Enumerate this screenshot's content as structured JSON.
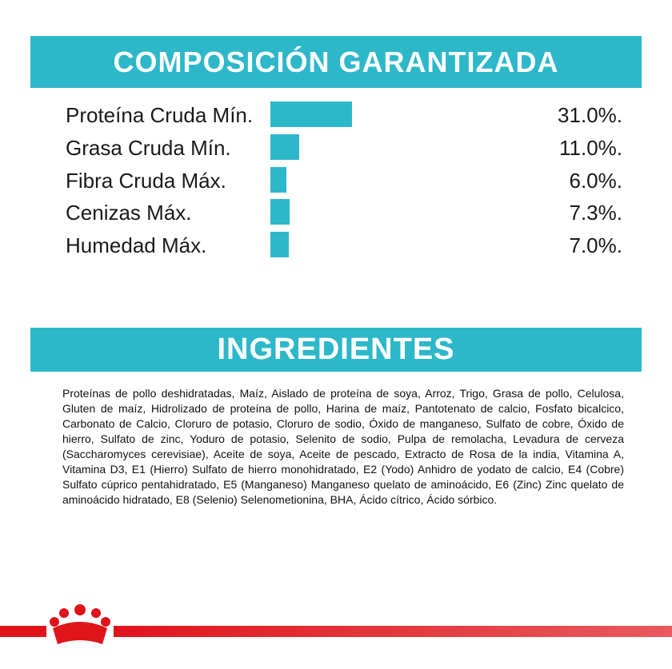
{
  "composition": {
    "title": "COMPOSICIÓN GARANTIZADA",
    "items": [
      {
        "label": "Proteína Cruda Mín.",
        "value": 31.0,
        "value_label": "31.0%."
      },
      {
        "label": "Grasa Cruda Mín.",
        "value": 11.0,
        "value_label": "11.0%."
      },
      {
        "label": "Fibra Cruda Máx.",
        "value": 6.0,
        "value_label": "6.0%."
      },
      {
        "label": "Cenizas Máx.",
        "value": 7.3,
        "value_label": "7.3%."
      },
      {
        "label": "Humedad Máx.",
        "value": 7.0,
        "value_label": "7.0%."
      }
    ]
  },
  "ingredients": {
    "title": "INGREDIENTES",
    "text": "Proteínas de pollo deshidratadas, Maíz, Aislado de proteína de soya, Arroz, Trigo, Grasa de pollo, Celulosa, Gluten de maíz, Hidrolizado de proteína de pollo, Harina de maíz, Pantotenato de calcio, Fosfato bicalcico, Carbonato de Calcio, Cloruro de potasio, Cloruro de sodio, Óxido de manganeso, Sulfato de cobre, Óxido de hierro, Sulfato de zinc, Yoduro de potasio, Selenito de sodio, Pulpa de remolacha, Levadura de cerveza (Saccharomyces cerevisiae), Aceite de soya, Aceite de pescado, Extracto de Rosa de la india, Vitamina A, Vitamina D3, E1 (Hierro) Sulfato de hierro monohidratado, E2 (Yodo) Anhidro de yodato de calcio, E4 (Cobre) Sulfato cúprico pentahidratado, E5 (Manganeso) Manganeso quelato de aminoácido, E6 (Zinc) Zinc quelato de aminoácido hidratado, E8 (Selenio) Selenometionina, BHA, Ácido cítrico, Ácido sórbico."
  }
}
